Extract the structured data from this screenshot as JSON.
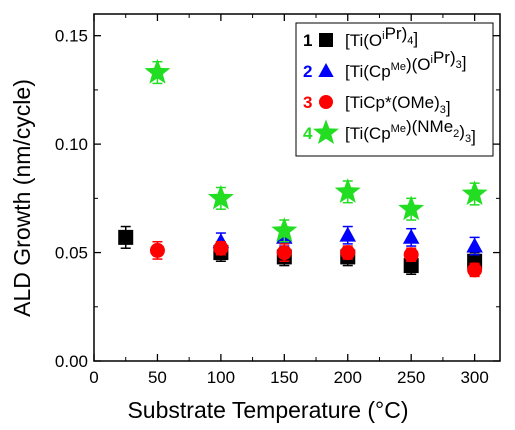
{
  "chart_data": {
    "type": "scatter",
    "xlabel": "Substrate Temperature (°C)",
    "ylabel": "ALD Growth (nm/cycle)",
    "xlim": [
      0,
      320
    ],
    "ylim": [
      0.0,
      0.16
    ],
    "x_ticks": [
      0,
      50,
      100,
      150,
      200,
      250,
      300
    ],
    "y_ticks": [
      "0.00",
      "0.05",
      "0.10",
      "0.15"
    ],
    "x_tick_labels": [
      "0",
      "50",
      "100",
      "150",
      "200",
      "250",
      "300"
    ],
    "legend_position": "top-right",
    "series": [
      {
        "number": "1",
        "name": "[Ti(OiPr)4]",
        "legend": {
          "a": "[Ti(O",
          "sup": "i",
          "b": "Pr)",
          "sub": "4",
          "c": "]"
        },
        "marker": "square",
        "color": "#000000",
        "x": [
          25,
          100,
          150,
          200,
          250,
          300
        ],
        "y": [
          0.057,
          0.05,
          0.048,
          0.048,
          0.044,
          0.046
        ],
        "err": [
          0.005,
          0.004,
          0.004,
          0.004,
          0.004,
          0.004
        ]
      },
      {
        "number": "2",
        "name": "[Ti(CpMe)(OiPr)3]",
        "legend": {
          "a": "[Ti(Cp",
          "sup": "Me",
          "b": ")(O",
          "sup2": "i",
          "c": "Pr)",
          "sub": "3",
          "d": "]"
        },
        "marker": "triangle",
        "color": "#0000ff",
        "x": [
          100,
          150,
          200,
          250,
          300
        ],
        "y": [
          0.055,
          0.057,
          0.058,
          0.057,
          0.053
        ],
        "err": [
          0.004,
          0.004,
          0.004,
          0.004,
          0.004
        ]
      },
      {
        "number": "3",
        "name": "[TiCp*(OMe)3]",
        "legend": {
          "a": "[TiCp*(OMe)",
          "sub": "3",
          "b": "]"
        },
        "marker": "circle",
        "color": "#ff0000",
        "x": [
          50,
          100,
          150,
          200,
          250,
          300
        ],
        "y": [
          0.051,
          0.052,
          0.05,
          0.05,
          0.049,
          0.042
        ],
        "err": [
          0.004,
          0.003,
          0.004,
          0.003,
          0.003,
          0.003
        ]
      },
      {
        "number": "4",
        "name": "[Ti(CpMe)(NMe2)3]",
        "legend": {
          "a": "[Ti(Cp",
          "sup": "Me",
          "b": ")(NMe",
          "sub": "2",
          "c": ")",
          "sub2": "3",
          "d": "]"
        },
        "marker": "star",
        "color": "#22dd22",
        "x": [
          50,
          100,
          150,
          200,
          250,
          300
        ],
        "y": [
          0.133,
          0.075,
          0.06,
          0.078,
          0.07,
          0.077
        ],
        "err": [
          0.005,
          0.005,
          0.005,
          0.005,
          0.005,
          0.005
        ]
      }
    ]
  }
}
